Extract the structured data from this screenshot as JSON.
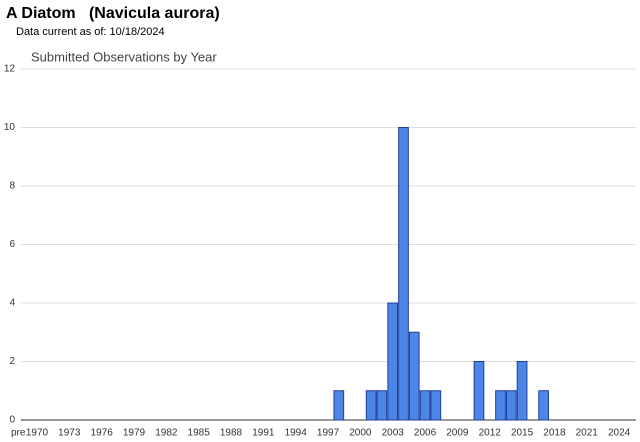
{
  "header": {
    "title": "A Diatom   (Navicula aurora)",
    "subtitle": "Data current as of: 10/18/2024"
  },
  "chart_data": {
    "type": "bar",
    "title": "Submitted Observations by Year",
    "categories": [
      "pre",
      "1970",
      null,
      null,
      "1973",
      null,
      null,
      "1976",
      null,
      null,
      "1979",
      null,
      null,
      "1982",
      null,
      null,
      "1985",
      null,
      null,
      "1988",
      null,
      null,
      "1991",
      null,
      null,
      "1994",
      null,
      null,
      "1997",
      null,
      null,
      "2000",
      null,
      null,
      "2003",
      null,
      null,
      "2006",
      null,
      null,
      "2009",
      null,
      null,
      "2012",
      null,
      null,
      "2015",
      null,
      null,
      "2018",
      null,
      null,
      "2021",
      null,
      null,
      "2024"
    ],
    "values": [
      0,
      0,
      0,
      0,
      0,
      0,
      0,
      0,
      0,
      0,
      0,
      0,
      0,
      0,
      0,
      0,
      0,
      0,
      0,
      0,
      0,
      0,
      0,
      0,
      0,
      0,
      0,
      0,
      0,
      1,
      0,
      0,
      1,
      1,
      4,
      10,
      3,
      1,
      1,
      0,
      0,
      0,
      2,
      0,
      1,
      1,
      2,
      0,
      1,
      0,
      0,
      0,
      0,
      0,
      0,
      0
    ],
    "color": "#4d86e6",
    "ylim": [
      0,
      12
    ],
    "yticks": [
      0,
      2,
      4,
      6,
      8,
      10,
      12
    ],
    "grid": true
  }
}
